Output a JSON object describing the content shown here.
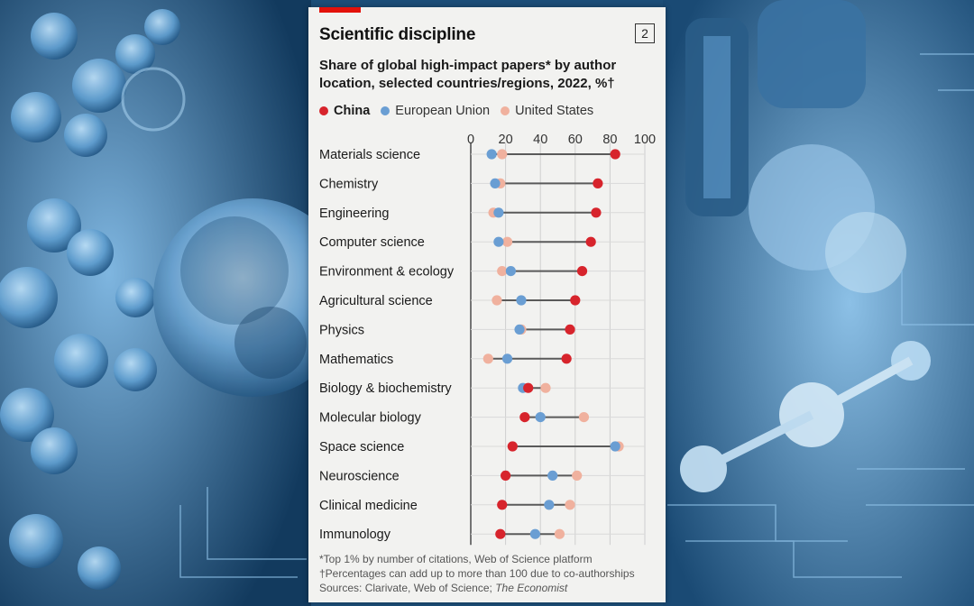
{
  "chart_data": {
    "type": "dot-plot",
    "title": "Scientific discipline",
    "chart_number": "2",
    "subtitle": "Share of global high-impact papers* by author location, selected countries/regions, 2022, %†",
    "xlim": [
      0,
      100
    ],
    "xticks": [
      0,
      20,
      40,
      60,
      80,
      100
    ],
    "categories": [
      "Materials science",
      "Chemistry",
      "Engineering",
      "Computer science",
      "Environment & ecology",
      "Agricultural science",
      "Physics",
      "Mathematics",
      "Biology & biochemistry",
      "Molecular biology",
      "Space science",
      "Neuroscience",
      "Clinical medicine",
      "Immunology"
    ],
    "series": [
      {
        "name": "China",
        "color": "#d7242c",
        "values": [
          83,
          73,
          72,
          69,
          64,
          60,
          57,
          55,
          33,
          31,
          24,
          20,
          18,
          17
        ]
      },
      {
        "name": "European Union",
        "color": "#6a9ed3",
        "values": [
          12,
          14,
          16,
          16,
          23,
          29,
          28,
          21,
          30,
          40,
          83,
          47,
          45,
          37
        ]
      },
      {
        "name": "United States",
        "color": "#f0b19e",
        "values": [
          18,
          17,
          13,
          21,
          18,
          15,
          29,
          10,
          43,
          65,
          85,
          61,
          57,
          51
        ]
      }
    ],
    "legend_position": "top-left"
  },
  "footnotes": {
    "note1": "*Top 1% by number of citations, Web of Science platform",
    "note2": "†Percentages can add up to more than 100 due to co-authorships",
    "sources_prefix": "Sources: Clarivate, Web of Science; ",
    "sources_publication": "The Economist"
  }
}
